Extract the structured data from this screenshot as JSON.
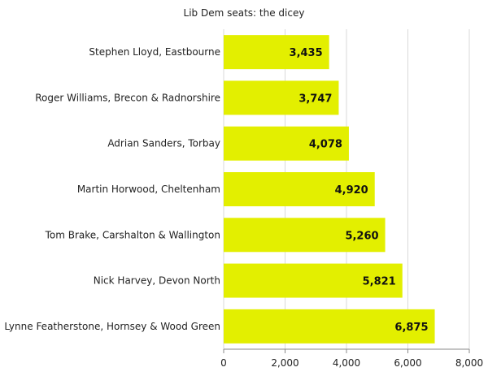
{
  "chart_data": {
    "type": "bar",
    "orientation": "horizontal",
    "title": "Lib Dem seats: the dicey",
    "categories": [
      "Stephen Lloyd, Eastbourne",
      "Roger Williams, Brecon & Radnorshire",
      "Adrian Sanders, Torbay",
      "Martin Horwood, Cheltenham",
      "Tom Brake, Carshalton & Wallington",
      "Nick Harvey, Devon North",
      "Lynne Featherstone, Hornsey & Wood Green"
    ],
    "values": [
      3435,
      3747,
      4078,
      4920,
      5260,
      5821,
      6875
    ],
    "value_labels": [
      "3,435",
      "3,747",
      "4,078",
      "4,920",
      "5,260",
      "5,821",
      "6,875"
    ],
    "xlim": [
      0,
      8000
    ],
    "x_ticks": [
      0,
      2000,
      4000,
      6000,
      8000
    ],
    "x_tick_labels": [
      "0",
      "2,000",
      "4,000",
      "6,000",
      "8,000"
    ],
    "xlabel": "",
    "ylabel": "",
    "grid": true,
    "legend": "none",
    "bar_color": "#e3ef00",
    "grid_color": "#d9d9d9"
  }
}
